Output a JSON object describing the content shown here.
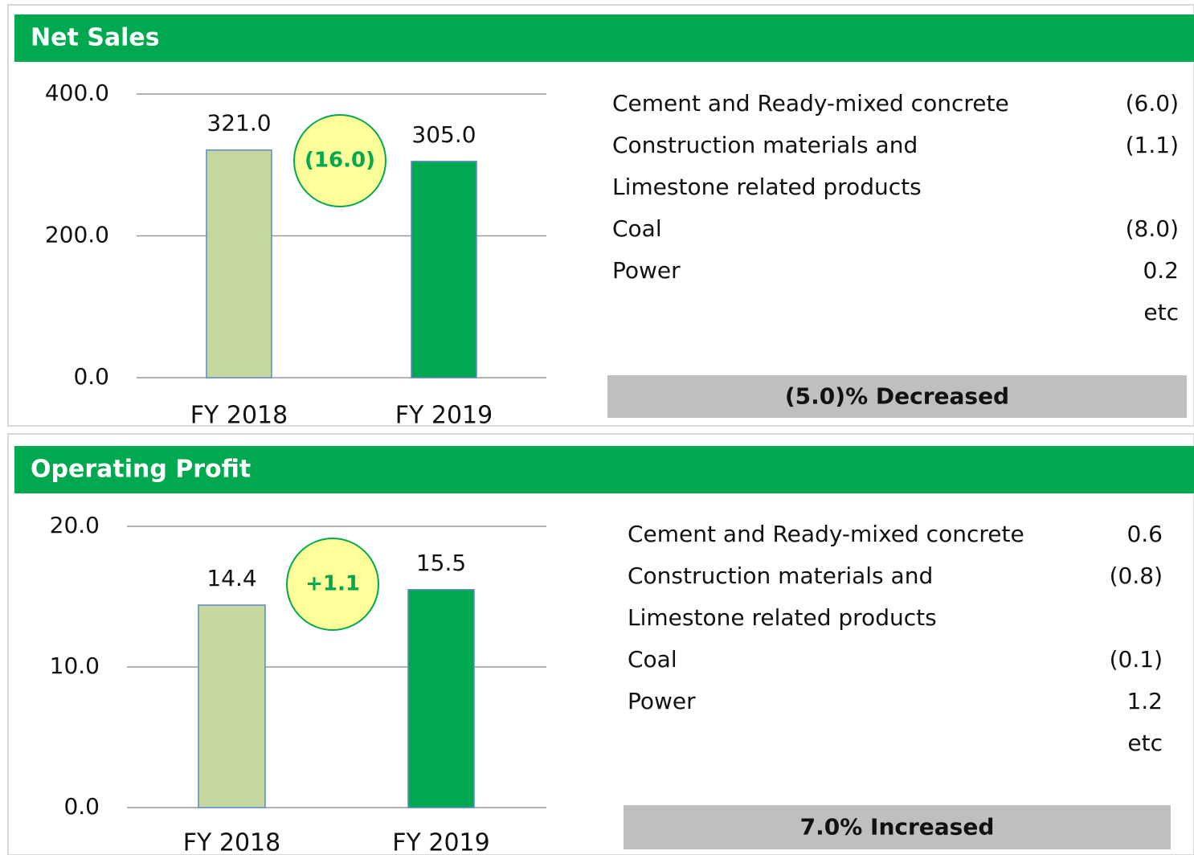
{
  "chart_data": [
    {
      "type": "bar",
      "title": "Net Sales",
      "categories": [
        "FY 2018",
        "FY 2019"
      ],
      "values": [
        321.0,
        305.0
      ],
      "value_labels": [
        "321.0",
        "305.0"
      ],
      "colors": [
        "#c5d69e",
        "#00a84f"
      ],
      "ylim": [
        0,
        400
      ],
      "yticks": [
        {
          "value": 0,
          "label": "0.0"
        },
        {
          "value": 200,
          "label": "200.0"
        },
        {
          "value": 400,
          "label": "400.0"
        }
      ],
      "grid": true,
      "annotation": "(16.0)",
      "breakdown": {
        "rows": [
          {
            "label": [
              "Cement and Ready-mixed concrete"
            ],
            "value": "(6.0)"
          },
          {
            "label": [
              "Construction materials and",
              "Limestone related products"
            ],
            "value": "(1.1)"
          },
          {
            "label": [
              "Coal"
            ],
            "value": "(8.0)"
          },
          {
            "label": [
              "Power"
            ],
            "value": "0.2"
          }
        ],
        "note": "etc",
        "summary": "(5.0)% Decreased"
      }
    },
    {
      "type": "bar",
      "title": "Operating Profit",
      "categories": [
        "FY 2018",
        "FY 2019"
      ],
      "values": [
        14.4,
        15.5
      ],
      "value_labels": [
        "14.4",
        "15.5"
      ],
      "colors": [
        "#c5d69e",
        "#00a84f"
      ],
      "ylim": [
        0,
        20
      ],
      "yticks": [
        {
          "value": 0,
          "label": "0.0"
        },
        {
          "value": 10,
          "label": "10.0"
        },
        {
          "value": 20,
          "label": "20.0"
        }
      ],
      "grid": true,
      "annotation": "+1.1",
      "breakdown": {
        "rows": [
          {
            "label": [
              "Cement and Ready-mixed concrete"
            ],
            "value": "0.6"
          },
          {
            "label": [
              "Construction materials and",
              "Limestone related products"
            ],
            "value": "(0.8)"
          },
          {
            "label": [
              "Coal"
            ],
            "value": "(0.1)"
          },
          {
            "label": [
              "Power"
            ],
            "value": "1.2"
          }
        ],
        "note": "etc",
        "summary": "7.0% Increased"
      }
    }
  ]
}
